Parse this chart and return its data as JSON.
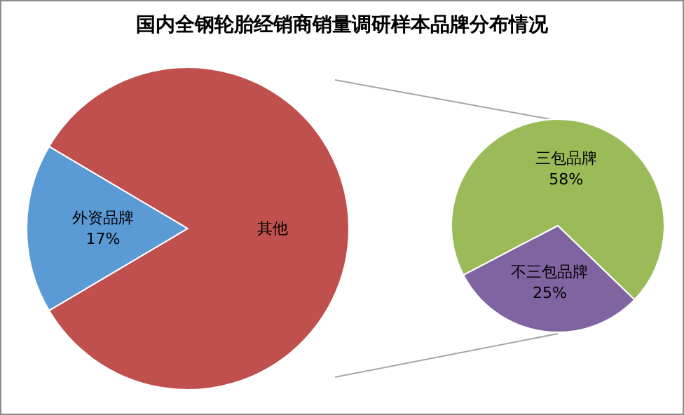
{
  "chart_data": [
    {
      "type": "pie",
      "title": "国内全钢轮胎经销商销量调研样本品牌分布情况",
      "categories": [
        "外资品牌",
        "其他"
      ],
      "values": [
        17,
        83
      ],
      "colors": [
        "#5b9bd5",
        "#c0504d"
      ],
      "value_labels": [
        "17%",
        null
      ]
    },
    {
      "type": "pie",
      "categories": [
        "三包品牌",
        "不三包品牌"
      ],
      "values": [
        58,
        25
      ],
      "colors": [
        "#9bbb59",
        "#8064a2"
      ],
      "value_labels": [
        "58%",
        "25%"
      ]
    }
  ]
}
